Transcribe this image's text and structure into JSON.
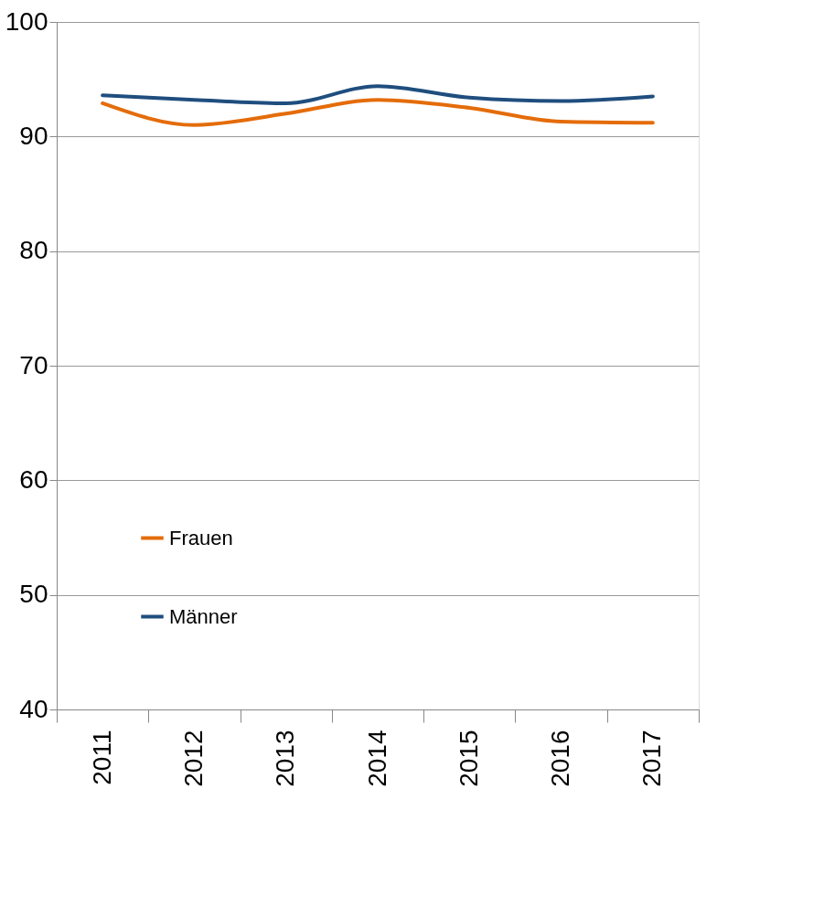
{
  "chart_data": {
    "type": "line",
    "categories": [
      "2011",
      "2012",
      "2013",
      "2014",
      "2015",
      "2016",
      "2017"
    ],
    "series": [
      {
        "name": "Frauen",
        "color": "#e46c0a",
        "values": [
          92.9,
          91.0,
          92.0,
          93.2,
          92.5,
          91.3,
          91.2
        ]
      },
      {
        "name": "Männer",
        "color": "#1f4e7e",
        "values": [
          93.6,
          93.2,
          92.9,
          94.4,
          93.4,
          93.1,
          93.5
        ]
      }
    ],
    "ylim": [
      40,
      100
    ],
    "yticks": [
      40,
      50,
      60,
      70,
      80,
      90,
      100
    ],
    "grid": "y",
    "legend": "bottom left",
    "marker": "none",
    "line_style": "solid"
  }
}
